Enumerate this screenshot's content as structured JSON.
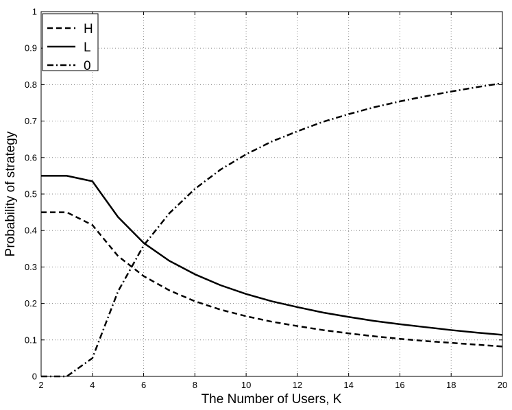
{
  "chart_data": {
    "type": "line",
    "xlabel": "The Number of Users, K",
    "ylabel": "Probability of strategy",
    "xlim": [
      2,
      20
    ],
    "ylim": [
      0,
      1
    ],
    "xticks": [
      2,
      4,
      6,
      8,
      10,
      12,
      14,
      16,
      18,
      20
    ],
    "yticks": [
      0,
      0.1,
      0.2,
      0.3,
      0.4,
      0.5,
      0.6,
      0.7,
      0.8,
      0.9,
      1
    ],
    "ytick_labels": [
      "0",
      "0.1",
      "0.2",
      "0.3",
      "0.4",
      "0.5",
      "0.6",
      "0.7",
      "0.8",
      "0.9",
      "1"
    ],
    "grid": true,
    "legend_position": "top-left",
    "x": [
      2,
      3,
      4,
      5,
      6,
      7,
      8,
      9,
      10,
      11,
      12,
      13,
      14,
      15,
      16,
      17,
      18,
      19,
      20
    ],
    "series": [
      {
        "name": "H",
        "style": "dashed",
        "color": "#000000",
        "values": [
          0.45,
          0.45,
          0.415,
          0.33,
          0.275,
          0.236,
          0.206,
          0.183,
          0.165,
          0.15,
          0.138,
          0.127,
          0.118,
          0.11,
          0.103,
          0.097,
          0.092,
          0.087,
          0.082
        ]
      },
      {
        "name": "L",
        "style": "solid",
        "color": "#000000",
        "values": [
          0.55,
          0.55,
          0.535,
          0.437,
          0.366,
          0.317,
          0.28,
          0.25,
          0.226,
          0.206,
          0.19,
          0.175,
          0.163,
          0.152,
          0.143,
          0.135,
          0.127,
          0.12,
          0.114
        ]
      },
      {
        "name": "0",
        "style": "dashdot",
        "color": "#000000",
        "values": [
          0,
          0,
          0.05,
          0.233,
          0.359,
          0.447,
          0.514,
          0.567,
          0.609,
          0.644,
          0.672,
          0.698,
          0.719,
          0.738,
          0.754,
          0.768,
          0.781,
          0.793,
          0.804
        ]
      }
    ]
  }
}
